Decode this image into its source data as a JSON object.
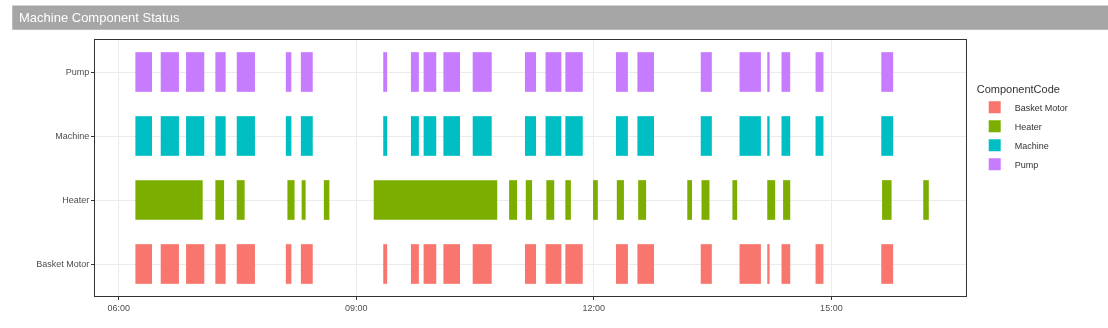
{
  "chart_data": {
    "type": "bar",
    "orientation": "horizontal",
    "title": "Machine Component Status",
    "legend_title": "ComponentCode",
    "categories": [
      "Pump",
      "Machine",
      "Heater",
      "Basket Motor"
    ],
    "series": [
      {
        "name": "Basket Motor",
        "color": "#f8766d",
        "base": [
          null,
          null,
          null,
          6.21
        ],
        "values": [
          null,
          null,
          null,
          0.21
        ]
      },
      {
        "name": "Heater",
        "color": "#7cae00",
        "base": [
          null,
          null,
          6.21,
          null
        ],
        "values": [
          null,
          null,
          0.85,
          null
        ]
      },
      {
        "name": "Machine",
        "color": "#00bfc4",
        "base": [
          null,
          6.21,
          null,
          null
        ],
        "values": [
          null,
          0.21,
          null,
          null
        ]
      },
      {
        "name": "Pump",
        "color": "#c77cff",
        "base": [
          6.21,
          null,
          null,
          null
        ],
        "values": [
          0.21,
          null,
          null,
          null
        ]
      },
      {
        "colors": [
          "#c77cff",
          "#00bfc4",
          "#7cae00",
          "#f8766d"
        ],
        "base": [
          6.53,
          6.53,
          7.22,
          6.53
        ],
        "values": [
          0.23,
          0.23,
          0.11,
          0.23
        ]
      },
      {
        "colors": [
          "#c77cff",
          "#00bfc4",
          "#7cae00",
          "#f8766d"
        ],
        "base": [
          6.85,
          6.85,
          7.49,
          6.85
        ],
        "values": [
          0.23,
          0.23,
          0.1,
          0.23
        ]
      },
      {
        "colors": [
          "#c77cff",
          "#00bfc4",
          "#7cae00",
          "#f8766d"
        ],
        "base": [
          7.22,
          7.22,
          8.13,
          7.22
        ],
        "values": [
          0.13,
          0.13,
          0.09,
          0.13
        ]
      },
      {
        "colors": [
          "#c77cff",
          "#00bfc4",
          "#7cae00",
          "#f8766d"
        ],
        "base": [
          7.49,
          7.49,
          8.31,
          7.49
        ],
        "values": [
          0.23,
          0.23,
          0.05,
          0.23
        ]
      },
      {
        "colors": [
          "#c77cff",
          "#00bfc4",
          "#7cae00",
          "#f8766d"
        ],
        "base": [
          8.11,
          8.11,
          8.59,
          8.11
        ],
        "values": [
          0.07,
          0.07,
          0.07,
          0.07
        ]
      },
      {
        "colors": [
          "#c77cff",
          "#00bfc4",
          "#7cae00",
          "#f8766d"
        ],
        "base": [
          8.3,
          8.3,
          9.22,
          8.3
        ],
        "values": [
          0.15,
          0.15,
          1.56,
          0.15
        ]
      },
      {
        "colors": [
          "#c77cff",
          "#00bfc4",
          "#7cae00",
          "#f8766d"
        ],
        "base": [
          9.34,
          9.34,
          10.93,
          9.34
        ],
        "values": [
          0.05,
          0.05,
          0.1,
          0.05
        ]
      },
      {
        "colors": [
          "#c77cff",
          "#00bfc4",
          "#7cae00",
          "#f8766d"
        ],
        "base": [
          9.69,
          9.69,
          11.14,
          9.69
        ],
        "values": [
          0.1,
          0.1,
          0.08,
          0.1
        ]
      },
      {
        "colors": [
          "#c77cff",
          "#00bfc4",
          "#7cae00",
          "#f8766d"
        ],
        "base": [
          9.85,
          9.85,
          11.4,
          9.85
        ],
        "values": [
          0.16,
          0.16,
          0.1,
          0.16
        ]
      },
      {
        "colors": [
          "#c77cff",
          "#00bfc4",
          "#7cae00",
          "#f8766d"
        ],
        "base": [
          10.1,
          10.1,
          11.64,
          10.1
        ],
        "values": [
          0.21,
          0.21,
          0.07,
          0.21
        ]
      },
      {
        "colors": [
          "#c77cff",
          "#00bfc4",
          "#7cae00",
          "#f8766d"
        ],
        "base": [
          10.47,
          10.47,
          11.99,
          10.47
        ],
        "values": [
          0.24,
          0.24,
          0.06,
          0.24
        ]
      },
      {
        "colors": [
          "#c77cff",
          "#00bfc4",
          "#7cae00",
          "#f8766d"
        ],
        "base": [
          11.13,
          11.13,
          12.29,
          11.13
        ],
        "values": [
          0.14,
          0.14,
          0.09,
          0.14
        ]
      },
      {
        "colors": [
          "#c77cff",
          "#00bfc4",
          "#7cae00",
          "#f8766d"
        ],
        "base": [
          11.39,
          11.39,
          12.56,
          11.39
        ],
        "values": [
          0.2,
          0.2,
          0.1,
          0.2
        ]
      },
      {
        "colors": [
          "#c77cff",
          "#00bfc4",
          "#7cae00",
          "#f8766d"
        ],
        "base": [
          11.64,
          11.64,
          13.18,
          11.64
        ],
        "values": [
          0.22,
          0.22,
          0.06,
          0.22
        ]
      },
      {
        "colors": [
          "#c77cff",
          "#00bfc4",
          "#7cae00",
          "#f8766d"
        ],
        "base": [
          12.28,
          12.28,
          13.36,
          12.28
        ],
        "values": [
          0.15,
          0.15,
          0.1,
          0.15
        ]
      },
      {
        "colors": [
          "#c77cff",
          "#00bfc4",
          "#7cae00",
          "#f8766d"
        ],
        "base": [
          12.55,
          12.55,
          13.75,
          12.55
        ],
        "values": [
          0.21,
          0.21,
          0.06,
          0.21
        ]
      },
      {
        "colors": [
          "#c77cff",
          "#00bfc4",
          "#7cae00",
          "#f8766d"
        ],
        "base": [
          13.35,
          13.35,
          14.19,
          13.35
        ],
        "values": [
          0.14,
          0.14,
          0.1,
          0.14
        ]
      },
      {
        "colors": [
          "#c77cff",
          "#00bfc4",
          "#7cae00",
          "#f8766d"
        ],
        "base": [
          13.84,
          13.84,
          14.39,
          13.84
        ],
        "values": [
          0.27,
          0.27,
          0.09,
          0.27
        ]
      },
      {
        "colors": [
          "#c77cff",
          "#00bfc4",
          "#7cae00",
          "#f8766d"
        ],
        "base": [
          14.19,
          14.19,
          15.64,
          14.19
        ],
        "values": [
          0.03,
          0.03,
          0.12,
          0.03
        ]
      },
      {
        "colors": [
          "#c77cff",
          "#00bfc4",
          "#7cae00",
          "#f8766d"
        ],
        "base": [
          14.37,
          14.37,
          16.16,
          14.37
        ],
        "values": [
          0.11,
          0.11,
          0.07,
          0.11
        ]
      },
      {
        "colors": [
          "#c77cff",
          "#00bfc4",
          "#7cae00",
          "#f8766d"
        ],
        "base": [
          14.8,
          14.8,
          null,
          14.8
        ],
        "values": [
          0.1,
          0.1,
          null,
          0.1
        ]
      },
      {
        "colors": [
          "#c77cff",
          "#00bfc4",
          "#7cae00",
          "#f8766d"
        ],
        "base": [
          15.63,
          15.63,
          null,
          15.63
        ],
        "values": [
          0.15,
          0.15,
          null,
          0.15
        ]
      }
    ],
    "xlim": [
      5.7,
      16.7
    ],
    "xticks": [
      {
        "value": 6,
        "label": "06:00"
      },
      {
        "value": 9,
        "label": "09:00"
      },
      {
        "value": 12,
        "label": "12:00"
      },
      {
        "value": 15,
        "label": "15:00"
      }
    ],
    "grid": true,
    "legend": "right"
  }
}
